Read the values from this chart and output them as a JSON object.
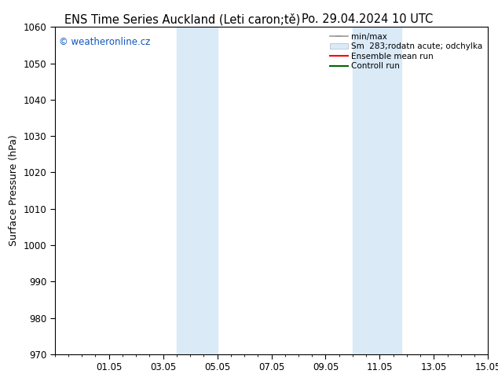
{
  "title_left": "ENS Time Series Auckland (Leti caron;tě)",
  "title_right": "Po. 29.04.2024 10 UTC",
  "ylabel": "Surface Pressure (hPa)",
  "ylim": [
    970,
    1060
  ],
  "yticks": [
    970,
    980,
    990,
    1000,
    1010,
    1020,
    1030,
    1040,
    1050,
    1060
  ],
  "xtick_labels": [
    "01.05",
    "03.05",
    "05.05",
    "07.05",
    "09.05",
    "11.05",
    "13.05",
    "15.05"
  ],
  "xtick_positions": [
    2,
    4,
    6,
    8,
    10,
    12,
    14,
    16
  ],
  "xlim": [
    0,
    16
  ],
  "shaded_regions": [
    {
      "start": 4.5,
      "end": 6.0
    },
    {
      "start": 11.0,
      "end": 12.8
    }
  ],
  "shaded_color": "#daeaf7",
  "watermark": "© weatheronline.cz",
  "watermark_color": "#1155bb",
  "bg_color": "#ffffff",
  "plot_bg_color": "#ffffff",
  "grid_color": "#cccccc",
  "title_fontsize": 10.5,
  "label_fontsize": 9,
  "tick_fontsize": 8.5,
  "legend_fontsize": 7.5
}
